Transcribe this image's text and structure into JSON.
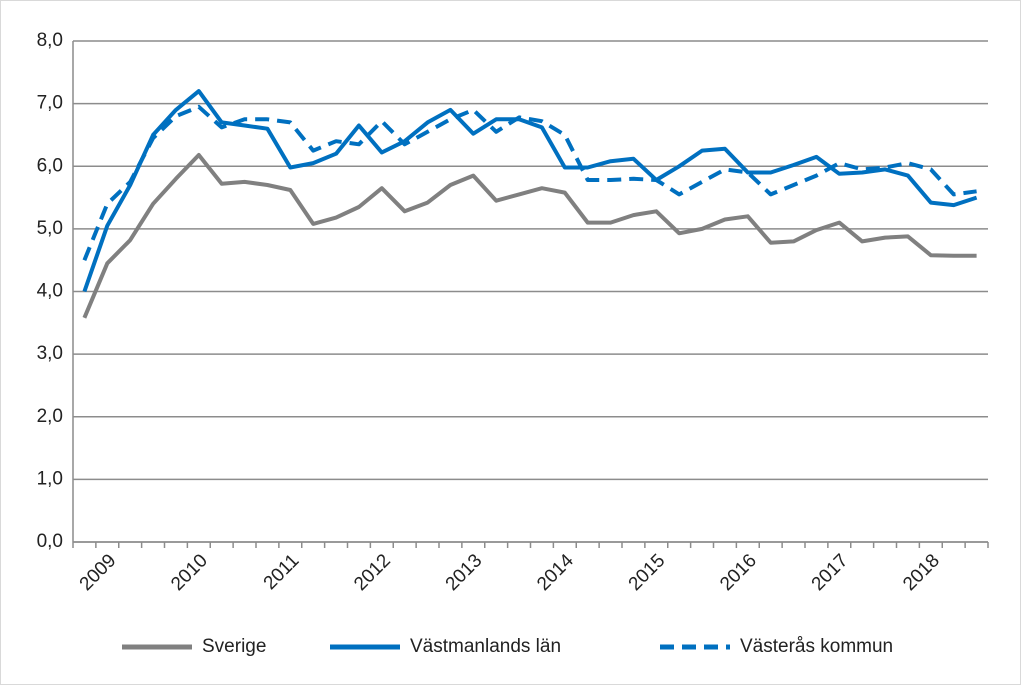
{
  "chart_data": {
    "type": "line",
    "categories": [
      null,
      "2009",
      null,
      null,
      null,
      "2010",
      null,
      null,
      null,
      "2011",
      null,
      null,
      null,
      "2012",
      null,
      null,
      null,
      "2013",
      null,
      null,
      null,
      "2014",
      null,
      null,
      null,
      "2015",
      null,
      null,
      null,
      "2016",
      null,
      null,
      null,
      "2017",
      null,
      null,
      null,
      "2018",
      null,
      null
    ],
    "series": [
      {
        "name": "Sverige",
        "color": "#808080",
        "dashed": false,
        "values": [
          3.58,
          4.45,
          4.82,
          5.4,
          5.8,
          6.18,
          5.72,
          5.75,
          5.7,
          5.62,
          5.08,
          5.18,
          5.35,
          5.65,
          5.28,
          5.42,
          5.7,
          5.85,
          5.45,
          5.55,
          5.65,
          5.58,
          5.1,
          5.1,
          5.22,
          5.28,
          4.93,
          5.0,
          5.15,
          5.2,
          4.78,
          4.8,
          4.98,
          5.1,
          4.8,
          4.86,
          4.88,
          4.58,
          4.57,
          4.57
        ]
      },
      {
        "name": "Västmanlands län",
        "color": "#0070c0",
        "dashed": false,
        "values": [
          4.0,
          5.05,
          5.7,
          6.5,
          6.9,
          7.2,
          6.7,
          6.65,
          6.6,
          5.98,
          6.05,
          6.2,
          6.65,
          6.22,
          6.4,
          6.7,
          6.9,
          6.52,
          6.75,
          6.75,
          6.62,
          5.98,
          5.98,
          6.08,
          6.12,
          5.78,
          6.0,
          6.25,
          6.28,
          5.9,
          5.9,
          6.02,
          6.15,
          5.88,
          5.9,
          5.95,
          5.85,
          5.42,
          5.38,
          5.5
        ]
      },
      {
        "name": "Västerås kommun",
        "color": "#0070c0",
        "dashed": true,
        "values": [
          4.5,
          5.4,
          5.75,
          6.45,
          6.8,
          6.95,
          6.62,
          6.75,
          6.75,
          6.7,
          6.25,
          6.4,
          6.35,
          6.72,
          6.35,
          6.55,
          6.75,
          6.9,
          6.55,
          6.78,
          6.72,
          6.5,
          5.78,
          5.78,
          5.8,
          5.78,
          5.55,
          5.75,
          5.95,
          5.9,
          5.55,
          5.7,
          5.85,
          6.05,
          5.95,
          5.98,
          6.05,
          5.95,
          5.55,
          5.6
        ]
      }
    ],
    "ylim": [
      0,
      8
    ],
    "yticks": [
      {
        "value": 0,
        "label": "0,0"
      },
      {
        "value": 1,
        "label": "1,0"
      },
      {
        "value": 2,
        "label": "2,0"
      },
      {
        "value": 3,
        "label": "3,0"
      },
      {
        "value": 4,
        "label": "4,0"
      },
      {
        "value": 5,
        "label": "5,0"
      },
      {
        "value": 6,
        "label": "6,0"
      },
      {
        "value": 7,
        "label": "7,0"
      },
      {
        "value": 8,
        "label": "8,0"
      }
    ],
    "grid": true,
    "legend": "bottom"
  }
}
